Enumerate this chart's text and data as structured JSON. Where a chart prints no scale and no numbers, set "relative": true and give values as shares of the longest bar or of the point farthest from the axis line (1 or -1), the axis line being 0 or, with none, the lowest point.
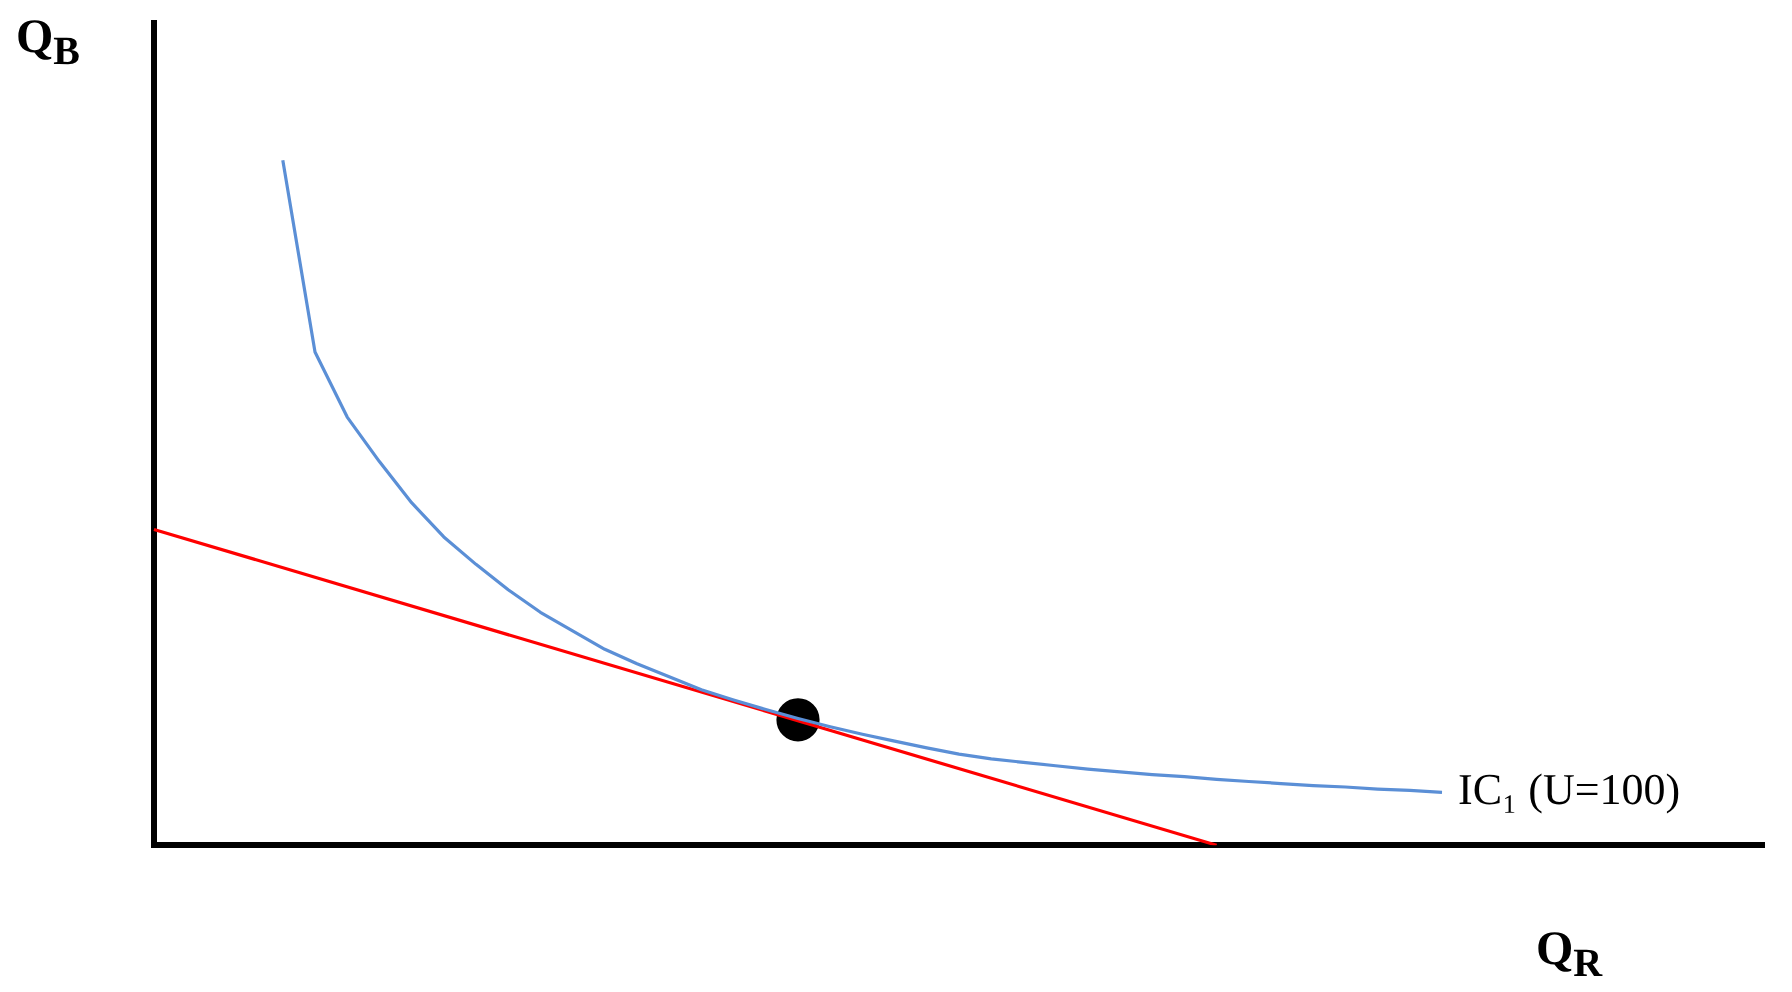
{
  "chart_data": {
    "type": "line",
    "relative": true,
    "xlabel": "Q$_{R}$",
    "ylabel": "Q$_{B}$",
    "categories": [
      null,
      null,
      null,
      null,
      null,
      null,
      null,
      null,
      null,
      null,
      null,
      null,
      null,
      null,
      null,
      null,
      null,
      null,
      null,
      null,
      null,
      null,
      null,
      null,
      null,
      null,
      null,
      null,
      null,
      null,
      null,
      null,
      null,
      null,
      null,
      null,
      null,
      null,
      null,
      null,
      null,
      null,
      null,
      null,
      null,
      null,
      null,
      null,
      null,
      null,
      null
    ],
    "series": [
      {
        "name": "IC₁ (U=100)",
        "color": "#5b8fd6",
        "values": [
          null,
          null,
          null,
          null,
          1,
          0.72,
          0.625,
          0.56,
          0.5,
          0.45,
          0.41,
          0.373,
          0.34,
          0.313,
          0.286,
          0.265,
          0.246,
          0.227,
          0.212,
          0.198,
          0.185,
          0.173,
          0.162,
          0.152,
          0.142,
          0.133,
          0.126,
          0.121,
          0.116,
          0.111,
          0.107,
          0.103,
          0.1,
          0.096,
          0.093,
          0.09,
          0.087,
          0.085,
          0.082,
          0.08,
          0.077,
          null,
          null,
          null,
          null,
          null,
          null,
          null,
          null,
          null,
          null
        ]
      },
      {
        "color": "#ff0000",
        "values": [
          0.461,
          null,
          null,
          null,
          null,
          null,
          null,
          null,
          null,
          null,
          null,
          null,
          null,
          null,
          null,
          null,
          null,
          null,
          null,
          null,
          null,
          null,
          null,
          null,
          null,
          null,
          null,
          null,
          null,
          null,
          null,
          null,
          null,
          0,
          null,
          null,
          null,
          null,
          null,
          null,
          null,
          null,
          null,
          null,
          null,
          null,
          null,
          null,
          null,
          null,
          null
        ]
      },
      {
        "color": "#000000",
        "marker": "circle",
        "values": [
          null,
          null,
          null,
          null,
          null,
          null,
          null,
          null,
          null,
          null,
          null,
          null,
          null,
          null,
          null,
          null,
          null,
          null,
          null,
          null,
          0.183,
          null,
          null,
          null,
          null,
          null,
          null,
          null,
          null,
          null,
          null,
          null,
          null,
          null,
          null,
          null,
          null,
          null,
          null,
          null,
          null,
          null,
          null,
          null,
          null,
          null,
          null,
          null,
          null,
          null,
          null
        ]
      }
    ]
  }
}
